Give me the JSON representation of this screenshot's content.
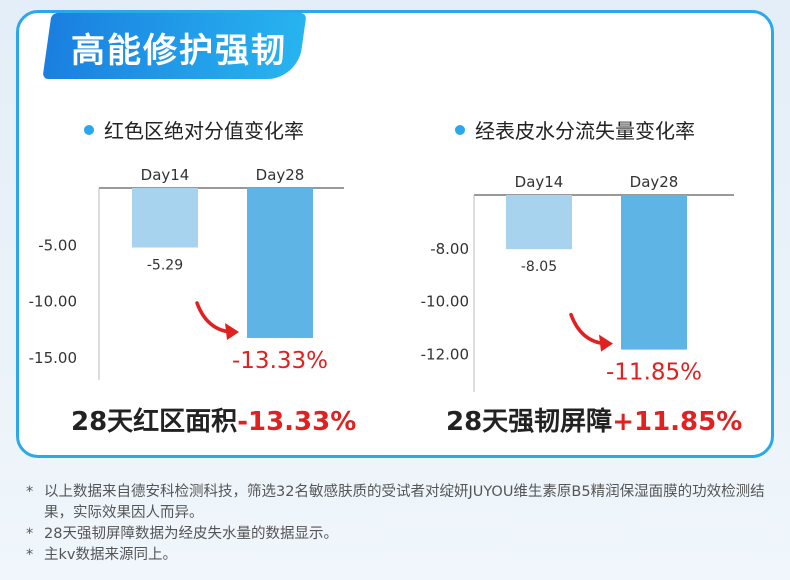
{
  "header": {
    "title": "高能修护强韧"
  },
  "chart_data": [
    {
      "type": "bar",
      "title": "红色区绝对分值变化率",
      "categories": [
        "Day14",
        "Day28"
      ],
      "values": [
        -5.29,
        -13.33
      ],
      "value_labels": [
        "-5.29",
        "-13.33%"
      ],
      "yticks": [
        "-5.00",
        "-10.00",
        "-15.00"
      ],
      "ylim": [
        -16,
        0
      ],
      "colors": [
        "#a7d3ee",
        "#5eb4e5"
      ],
      "highlight_color": "#e0211f"
    },
    {
      "type": "bar",
      "title": "经表皮水分流失量变化率",
      "categories": [
        "Day14",
        "Day28"
      ],
      "values": [
        -8.05,
        -11.85
      ],
      "value_labels": [
        "-8.05",
        "-11.85%"
      ],
      "yticks": [
        "-8.00",
        "-10.00",
        "-12.00"
      ],
      "ylim": [
        -13,
        -6
      ],
      "colors": [
        "#a7d3ee",
        "#5eb4e5"
      ],
      "highlight_color": "#e0211f"
    }
  ],
  "summaries": [
    {
      "prefix": "28天红区面积",
      "value": "-13.33%"
    },
    {
      "prefix": "28天强韧屏障",
      "value": "+11.85%"
    }
  ],
  "notes": [
    "以上数据来自德安科检测科技，筛选32名敏感肤质的受试者对绽妍JUYOU维生素原B5精润保湿面膜的功效检测结果，实际效果因人而异。",
    "28天强韧屏障数据为经皮失水量的数据显示。",
    "主kv数据来源同上。"
  ],
  "note_marker": "*"
}
